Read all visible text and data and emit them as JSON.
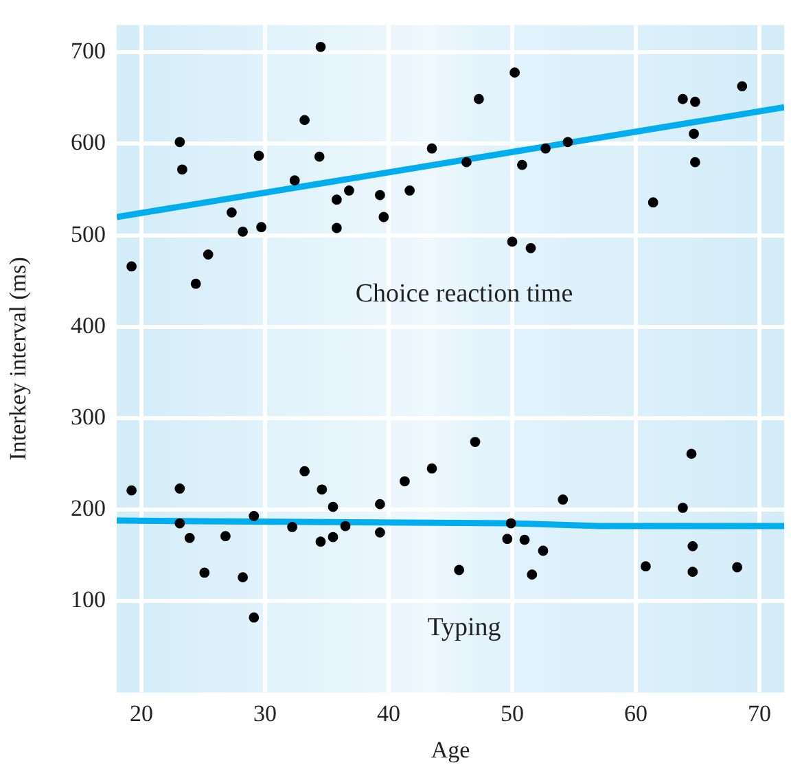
{
  "chart_data": {
    "type": "scatter",
    "xlabel": "Age",
    "ylabel": "Interkey interval (ms)",
    "xlim": [
      18,
      72
    ],
    "ylim": [
      0,
      730
    ],
    "xticks": [
      20,
      30,
      40,
      50,
      60,
      70
    ],
    "yticks": [
      100,
      200,
      300,
      400,
      500,
      600,
      700
    ],
    "grid": true,
    "legend": false,
    "series": [
      {
        "name": "Choice reaction time",
        "marker": "circle",
        "color": "#000000",
        "x": [
          34.5,
          33.2,
          23.1,
          23.3,
          29.5,
          34.4,
          43.5,
          46.3,
          32.4,
          35.8,
          36.8,
          39.3,
          41.7,
          39.6,
          27.3,
          28.2,
          29.7,
          35.8,
          19.2,
          25.4,
          24.4,
          47.3,
          50.2,
          50.8,
          52.7,
          54.5,
          50.0,
          51.5,
          61.4,
          63.8,
          64.8,
          64.7,
          64.8,
          68.6
        ],
        "values": [
          706,
          626,
          602,
          572,
          587,
          586,
          595,
          580,
          560,
          539,
          549,
          544,
          549,
          520,
          525,
          504,
          509,
          508,
          466,
          479,
          447,
          649,
          678,
          577,
          595,
          602,
          493,
          486,
          536,
          649,
          646,
          611,
          580,
          663
        ]
      },
      {
        "name": "Typing",
        "marker": "circle",
        "color": "#000000",
        "x": [
          19.2,
          23.1,
          23.1,
          23.9,
          25.1,
          26.8,
          28.2,
          29.1,
          29.1,
          32.2,
          33.2,
          34.6,
          35.5,
          34.5,
          35.5,
          36.5,
          39.3,
          39.3,
          41.3,
          43.5,
          45.7,
          47.0,
          54.1,
          49.9,
          49.6,
          51.0,
          52.5,
          51.6,
          64.5,
          63.8,
          64.6,
          60.8,
          64.6,
          68.2
        ],
        "values": [
          221,
          223,
          185,
          169,
          131,
          171,
          126,
          193,
          82,
          181,
          242,
          222,
          203,
          165,
          170,
          182,
          206,
          175,
          231,
          245,
          134,
          274,
          211,
          185,
          168,
          167,
          155,
          129,
          261,
          202,
          160,
          138,
          132,
          137
        ]
      },
      {
        "type": "line",
        "color": "#00aeef",
        "x": [
          18,
          72
        ],
        "values": [
          520,
          640
        ]
      },
      {
        "type": "line",
        "color": "#00aeef",
        "x": [
          18,
          50,
          57,
          72
        ],
        "values": [
          188,
          185,
          182,
          182
        ]
      }
    ]
  }
}
